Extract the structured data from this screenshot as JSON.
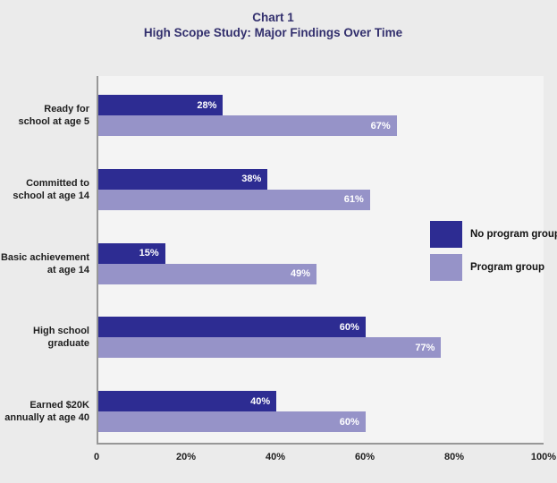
{
  "title": {
    "line1": "Chart 1",
    "line2": "High Scope Study: Major Findings Over Time"
  },
  "legend": {
    "items": [
      {
        "label": "No program group",
        "color": "#2d2c92"
      },
      {
        "label": "Program group",
        "color": "#9693c8"
      }
    ]
  },
  "colors": {
    "no_program_bar": "#2d2c92",
    "program_bar": "#9693c8",
    "title_text": "#322f6d",
    "axis_line": "#979797",
    "plot_background": "#f4f4f4",
    "page_background": "#ebebeb",
    "value_label_text": "#ffffff"
  },
  "chart_data": {
    "type": "bar",
    "orientation": "horizontal",
    "title": "Chart 1 — High Scope Study: Major Findings Over Time",
    "categories": [
      "Ready for school at age 5",
      "Committed to school at age 14",
      "Basic achievement at age 14",
      "High school graduate",
      "Earned $20K annually at age 40"
    ],
    "category_lines": [
      [
        "Ready for",
        "school at age 5"
      ],
      [
        "Committed to",
        "school at age 14"
      ],
      [
        "Basic achievement",
        "at age 14"
      ],
      [
        "High school",
        "graduate"
      ],
      [
        "Earned $20K",
        "annually at age 40"
      ]
    ],
    "series": [
      {
        "name": "No program group",
        "color": "#2d2c92",
        "values": [
          28,
          38,
          15,
          60,
          40
        ]
      },
      {
        "name": "Program group",
        "color": "#9693c8",
        "values": [
          67,
          61,
          49,
          77,
          60
        ]
      }
    ],
    "value_labels": [
      [
        "28%",
        "38%",
        "15%",
        "60%",
        "40%"
      ],
      [
        "67%",
        "61%",
        "49%",
        "77%",
        "60%"
      ]
    ],
    "value_suffix": "%",
    "xlim": [
      0,
      100
    ],
    "x_ticks": [
      "0",
      "20%",
      "40%",
      "60%",
      "80%",
      "100%"
    ],
    "x_tick_positions": [
      0,
      20,
      40,
      60,
      80,
      100
    ],
    "grid": false,
    "legend_position": "right-middle"
  }
}
